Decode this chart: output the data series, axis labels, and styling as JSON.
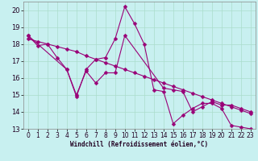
{
  "title": "",
  "xlabel": "Windchill (Refroidissement éolien,°C)",
  "ylabel": "",
  "bg_color": "#c8f0f0",
  "line_color": "#990077",
  "grid_color": "#aaddcc",
  "xlim": [
    -0.5,
    23.5
  ],
  "ylim": [
    13,
    20.5
  ],
  "xticks": [
    0,
    1,
    2,
    3,
    4,
    5,
    6,
    7,
    8,
    9,
    10,
    11,
    12,
    13,
    14,
    15,
    16,
    17,
    18,
    19,
    20,
    21,
    22,
    23
  ],
  "yticks": [
    13,
    14,
    15,
    16,
    17,
    18,
    19,
    20
  ],
  "series1_x": [
    0,
    1,
    2,
    3,
    4,
    5,
    6,
    7,
    8,
    9,
    10,
    11,
    12,
    13,
    14,
    15,
    16,
    17,
    18,
    19,
    20,
    21,
    22,
    23
  ],
  "series1_y": [
    18.5,
    17.9,
    18.0,
    17.2,
    16.5,
    14.9,
    16.5,
    17.1,
    17.2,
    18.3,
    20.2,
    19.2,
    18.0,
    15.3,
    15.2,
    13.3,
    13.8,
    14.2,
    14.5,
    14.5,
    14.2,
    13.2,
    13.1,
    13.0
  ],
  "series2_x": [
    0,
    1,
    2,
    3,
    4,
    5,
    6,
    7,
    8,
    9,
    10,
    11,
    12,
    13,
    14,
    15,
    16,
    17,
    18,
    19,
    20,
    21,
    22,
    23
  ],
  "series2_y": [
    18.3,
    18.15,
    18.0,
    17.85,
    17.7,
    17.55,
    17.3,
    17.1,
    16.9,
    16.7,
    16.5,
    16.3,
    16.1,
    15.9,
    15.7,
    15.5,
    15.3,
    15.1,
    14.9,
    14.7,
    14.5,
    14.3,
    14.1,
    13.9
  ],
  "series3_x": [
    0,
    4,
    5,
    6,
    7,
    8,
    9,
    10,
    14,
    15,
    16,
    17,
    18,
    19,
    20,
    21,
    22,
    23
  ],
  "series3_y": [
    18.5,
    16.5,
    15.0,
    16.4,
    15.7,
    16.3,
    16.3,
    18.5,
    15.4,
    15.3,
    15.2,
    14.0,
    14.3,
    14.6,
    14.4,
    14.4,
    14.2,
    14.0
  ],
  "tick_fontsize": 5.5,
  "xlabel_fontsize": 5.5,
  "marker_size": 2.5,
  "line_width": 0.8
}
